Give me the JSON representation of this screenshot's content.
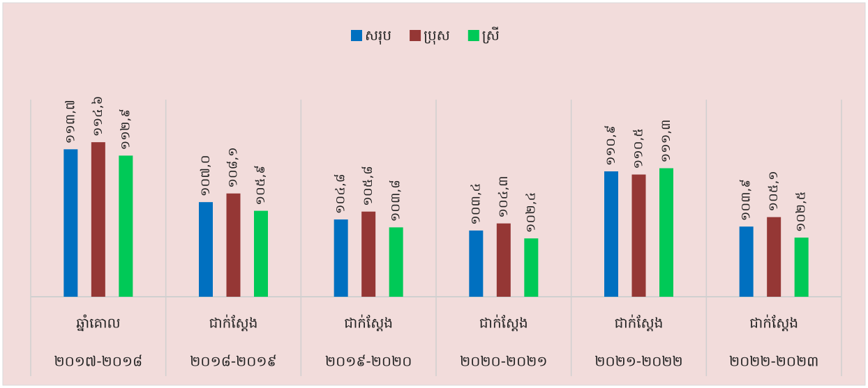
{
  "chart_data": {
    "type": "bar",
    "categories": [
      [
        "ឆ្នាំគោល",
        "២០១៧-២០១៨"
      ],
      [
        "ជាក់ស្តែង",
        "២០១៨-២០១៩"
      ],
      [
        "ជាក់ស្តែង",
        "២០១៩-២០២០"
      ],
      [
        "ជាក់ស្តែង",
        "២០២០-២០២១"
      ],
      [
        "ជាក់ស្តែង",
        "២០២១-២០២២"
      ],
      [
        "ជាក់ស្តែង",
        "២០២២-២០២៣"
      ]
    ],
    "series": [
      {
        "name": "សរុប",
        "color": "#0070c0",
        "values": [
          113.7,
          107.0,
          104.8,
          103.4,
          110.9,
          103.9
        ],
        "value_labels": [
          "១១៣,៧",
          "១០៧,០",
          "១០៤,៨",
          "១០៣,៤",
          "១១០,៩",
          "១០៣,៩"
        ]
      },
      {
        "name": "ប្រុស",
        "color": "#953735",
        "values": [
          114.6,
          108.1,
          105.8,
          104.3,
          110.5,
          105.1
        ],
        "value_labels": [
          "១១៤,៦",
          "១០៨,១",
          "១០៥,៨",
          "១០៤,៣",
          "១១០,៥",
          "១០៥,១"
        ]
      },
      {
        "name": "ស្រី",
        "color": "#00c957",
        "values": [
          112.9,
          105.9,
          103.8,
          102.4,
          111.3,
          102.5
        ],
        "value_labels": [
          "១១២,៩",
          "១០៥,៩",
          "១០៣,៨",
          "១០២,៤",
          "១១១,៣",
          "១០២,៥"
        ]
      }
    ],
    "ylim": [
      95,
      120
    ],
    "legend": "top"
  }
}
